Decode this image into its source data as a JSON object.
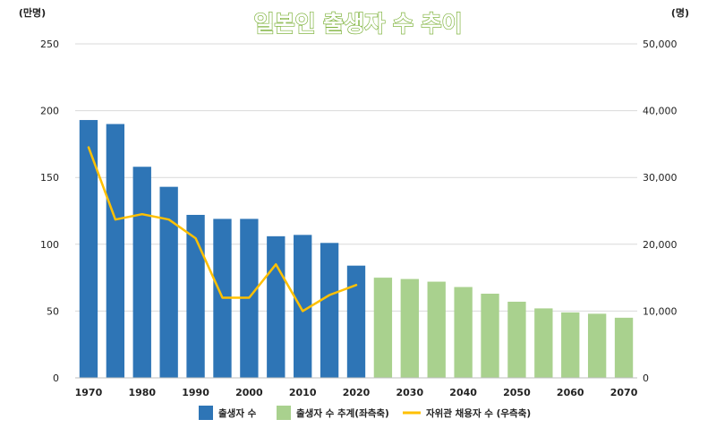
{
  "chart_data": {
    "type": "bar",
    "title": "일본인 출생자 수 추이",
    "left_axis_unit": "(만명)",
    "right_axis_unit": "(명)",
    "ylim_left": [
      0,
      250
    ],
    "ylim_right": [
      0,
      50000
    ],
    "left_ticks": [
      "0",
      "50",
      "100",
      "150",
      "200",
      "250"
    ],
    "right_ticks": [
      "0",
      "10,000",
      "20,000",
      "30,000",
      "40,000",
      "50,000"
    ],
    "x": [
      1970,
      1975,
      1980,
      1985,
      1990,
      1995,
      2000,
      2005,
      2010,
      2015,
      2020,
      2025,
      2030,
      2035,
      2040,
      2045,
      2050,
      2055,
      2060,
      2065,
      2070
    ],
    "x_tick_labels": [
      "1970",
      "1980",
      "1990",
      "2000",
      "2010",
      "2020",
      "2030",
      "2040",
      "2050",
      "2060",
      "2070"
    ],
    "series": [
      {
        "name": "출생자 수",
        "kind": "bar",
        "axis": "left",
        "color": "#2e75b6",
        "x": [
          1970,
          1975,
          1980,
          1985,
          1990,
          1995,
          2000,
          2005,
          2010,
          2015,
          2020
        ],
        "values": [
          193,
          190,
          158,
          143,
          122,
          119,
          119,
          106,
          107,
          101,
          84
        ]
      },
      {
        "name": "출생자 수 추계(좌측축)",
        "kind": "bar",
        "axis": "left",
        "color": "#a9d18e",
        "x": [
          2025,
          2030,
          2035,
          2040,
          2045,
          2050,
          2055,
          2060,
          2065,
          2070
        ],
        "values": [
          75,
          74,
          72,
          68,
          63,
          57,
          52,
          49,
          48,
          45
        ]
      },
      {
        "name": "자위관 채용자 수 (우측축)",
        "kind": "line",
        "axis": "right",
        "color": "#ffc000",
        "x": [
          1970,
          1975,
          1980,
          1985,
          1990,
          1995,
          2000,
          2005,
          2010,
          2015,
          2020
        ],
        "values": [
          34500,
          23700,
          24500,
          23700,
          20900,
          12000,
          12000,
          17000,
          10000,
          12400,
          13900
        ]
      }
    ],
    "legend": {
      "placement": "bottom",
      "items": [
        "출생자 수",
        "출생자 수 추계(좌측축)",
        "자위관 채용자 수 (우측축)"
      ]
    },
    "grid": true
  }
}
